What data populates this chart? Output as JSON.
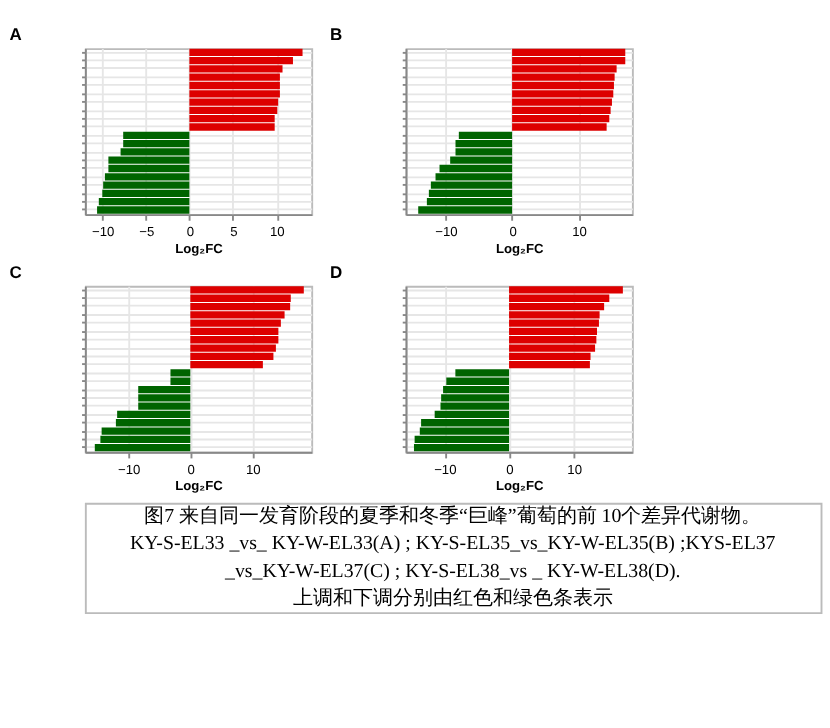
{
  "chart_data": [
    {
      "type": "bar",
      "orientation": "horizontal",
      "title": "A",
      "xlabel": "Log₂FC",
      "grid": true,
      "xlim": [
        -12,
        14
      ],
      "xticks": [
        -10,
        -5,
        0,
        5,
        10
      ],
      "categories": [
        null,
        null,
        null,
        null,
        null,
        null,
        null,
        null,
        null,
        null,
        null,
        null,
        null,
        null,
        null,
        null,
        null,
        null,
        null,
        null
      ],
      "values": [
        13.0,
        11.9,
        10.7,
        10.4,
        10.4,
        10.4,
        10.2,
        10.1,
        9.8,
        9.8,
        -7.6,
        -7.6,
        -7.9,
        -9.3,
        -9.3,
        -9.7,
        -9.9,
        -10.0,
        -10.4,
        -10.6
      ],
      "colors": [
        "#dd0000",
        "#dd0000",
        "#dd0000",
        "#dd0000",
        "#dd0000",
        "#dd0000",
        "#dd0000",
        "#dd0000",
        "#dd0000",
        "#dd0000",
        "#006400",
        "#006400",
        "#006400",
        "#006400",
        "#006400",
        "#006400",
        "#006400",
        "#006400",
        "#006400",
        "#006400"
      ]
    },
    {
      "type": "bar",
      "orientation": "horizontal",
      "title": "B",
      "xlabel": "Log₂FC",
      "grid": true,
      "xlim": [
        -16,
        18
      ],
      "xticks": [
        -10,
        0,
        10
      ],
      "categories": [
        null,
        null,
        null,
        null,
        null,
        null,
        null,
        null,
        null,
        null,
        null,
        null,
        null,
        null,
        null,
        null,
        null,
        null,
        null,
        null
      ],
      "values": [
        17.0,
        17.0,
        15.7,
        15.4,
        15.3,
        15.2,
        15.0,
        14.8,
        14.6,
        14.2,
        -8.0,
        -8.5,
        -8.5,
        -9.3,
        -10.9,
        -11.5,
        -12.2,
        -12.5,
        -12.8,
        -14.1
      ],
      "colors": [
        "#dd0000",
        "#dd0000",
        "#dd0000",
        "#dd0000",
        "#dd0000",
        "#dd0000",
        "#dd0000",
        "#dd0000",
        "#dd0000",
        "#dd0000",
        "#006400",
        "#006400",
        "#006400",
        "#006400",
        "#006400",
        "#006400",
        "#006400",
        "#006400",
        "#006400",
        "#006400"
      ]
    },
    {
      "type": "bar",
      "orientation": "horizontal",
      "title": "C",
      "xlabel": "Log₂FC",
      "grid": true,
      "xlim": [
        -17,
        19.5
      ],
      "xticks": [
        -10,
        0,
        10
      ],
      "categories": [
        null,
        null,
        null,
        null,
        null,
        null,
        null,
        null,
        null,
        null,
        null,
        null,
        null,
        null,
        null,
        null,
        null,
        null,
        null,
        null
      ],
      "values": [
        18.3,
        16.2,
        16.1,
        15.2,
        14.6,
        14.2,
        14.2,
        13.8,
        13.4,
        11.7,
        -3.2,
        -3.2,
        -8.4,
        -8.4,
        -8.4,
        -11.8,
        -12.0,
        -14.3,
        -14.5,
        -15.4
      ],
      "colors": [
        "#dd0000",
        "#dd0000",
        "#dd0000",
        "#dd0000",
        "#dd0000",
        "#dd0000",
        "#dd0000",
        "#dd0000",
        "#dd0000",
        "#dd0000",
        "#006400",
        "#006400",
        "#006400",
        "#006400",
        "#006400",
        "#006400",
        "#006400",
        "#006400",
        "#006400",
        "#006400"
      ]
    },
    {
      "type": "bar",
      "orientation": "horizontal",
      "title": "D",
      "xlabel": "Log₂FC",
      "grid": true,
      "xlim": [
        -16,
        19
      ],
      "xticks": [
        -10,
        0,
        10
      ],
      "categories": [
        null,
        null,
        null,
        null,
        null,
        null,
        null,
        null,
        null,
        null,
        null,
        null,
        null,
        null,
        null,
        null,
        null,
        null,
        null,
        null
      ],
      "values": [
        17.6,
        15.5,
        14.7,
        14.0,
        13.9,
        13.6,
        13.5,
        13.3,
        12.6,
        12.5,
        -8.3,
        -9.7,
        -10.2,
        -10.5,
        -10.6,
        -11.5,
        -13.6,
        -13.8,
        -14.6,
        -14.7
      ],
      "colors": [
        "#dd0000",
        "#dd0000",
        "#dd0000",
        "#dd0000",
        "#dd0000",
        "#dd0000",
        "#dd0000",
        "#dd0000",
        "#dd0000",
        "#dd0000",
        "#006400",
        "#006400",
        "#006400",
        "#006400",
        "#006400",
        "#006400",
        "#006400",
        "#006400",
        "#006400",
        "#006400"
      ]
    },
    {
      "type": "other",
      "annotations": [
        "图7 来自同一发育阶段的夏季和冬季“巨峰”葡萄的前 10个差异代谢物。",
        "KY-S-EL33 _vs_ KY-W-EL33(A) ; KY-S-EL35_vs_KY-W-EL35(B) ;KYS-EL37",
        "_vs_KY-W-EL37(C) ; KY-S-EL38_vs _ KY-W-EL38(D).",
        "上调和下调分别由红色和绿色条表示"
      ]
    }
  ]
}
